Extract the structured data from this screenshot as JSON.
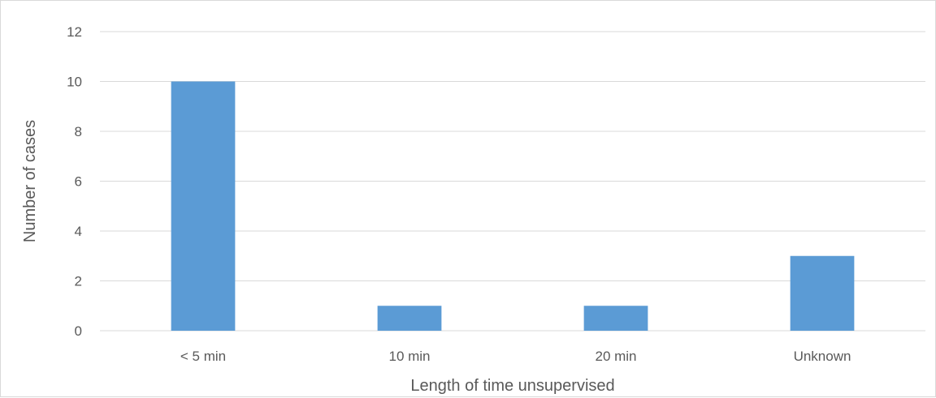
{
  "chart_data": {
    "type": "bar",
    "title": "",
    "xlabel": "Length of time unsupervised",
    "ylabel": "Number of cases",
    "categories": [
      "< 5 min",
      "10 min",
      "20 min",
      "Unknown"
    ],
    "values": [
      10,
      1,
      1,
      3
    ],
    "ylim": [
      0,
      12
    ],
    "yticks": [
      "0",
      "2",
      "4",
      "6",
      "8",
      "10",
      "12"
    ],
    "grid": true,
    "legend": "none",
    "bar_color": "#5b9bd5"
  }
}
